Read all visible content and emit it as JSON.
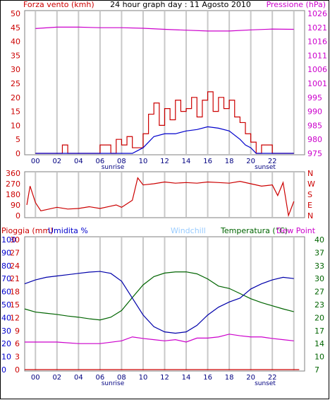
{
  "title": "24 hour graph day : 11 Agosto 2010",
  "colors": {
    "wind": "#cc0000",
    "wind_avg": "#0000cc",
    "pressure": "#cc00cc",
    "direction": "#cc0000",
    "humidity": "#0000aa",
    "temperature": "#006400",
    "dewpoint": "#cc00cc",
    "rain": "#cc0000",
    "windchill": "#99ccff"
  },
  "x_ticks": [
    "00",
    "02",
    "04",
    "06",
    "08",
    "10",
    "12",
    "14",
    "16",
    "18",
    "20",
    "22"
  ],
  "sunrise_label": "sunrise",
  "sunset_label": "sunset",
  "chart_data": [
    {
      "type": "line",
      "name": "wind-pressure",
      "left_label": "Forza vento (kmh)",
      "right_label": "Pressione (hPa)",
      "y_left_ticks": [
        "50",
        "45",
        "40",
        "35",
        "30",
        "25",
        "20",
        "15",
        "10",
        "5",
        "0"
      ],
      "y_left_lim": [
        0,
        50
      ],
      "y_right_ticks": [
        "1026",
        "1021",
        "1016",
        "1011",
        "1006",
        "1001",
        "995",
        "990",
        "985",
        "980",
        "975"
      ],
      "x_range_hours": [
        -1,
        25
      ],
      "gust": {
        "hours": [
          0,
          1,
          2,
          2.5,
          3,
          4,
          5,
          6,
          7,
          7.5,
          8,
          8.5,
          9,
          10,
          10.5,
          11,
          11.5,
          12,
          12.5,
          13,
          13.5,
          14,
          14.5,
          15,
          15.5,
          16,
          16.5,
          17,
          17.5,
          18,
          18.5,
          19,
          19.5,
          20,
          20.5,
          21,
          22,
          23,
          24
        ],
        "values": [
          0,
          0,
          0,
          3,
          0,
          0,
          0,
          3,
          0,
          5,
          3,
          6,
          2,
          7,
          14,
          18,
          10,
          16,
          12,
          19,
          15,
          16,
          20,
          13,
          19,
          22,
          15,
          20,
          16,
          19,
          13,
          11,
          7,
          4,
          0,
          3,
          0,
          0,
          0
        ]
      },
      "average": {
        "hours": [
          0,
          8,
          9,
          9.5,
          10,
          10.5,
          11,
          12,
          13,
          14,
          15,
          16,
          17,
          18,
          19,
          19.5,
          20,
          20.5,
          21,
          24
        ],
        "values": [
          0,
          0,
          0,
          1,
          2,
          4,
          6,
          7,
          7,
          8,
          8.5,
          9.5,
          9,
          8,
          5,
          3,
          2,
          0,
          0,
          0
        ]
      },
      "pressure": {
        "hours": [
          0,
          2,
          4,
          6,
          8,
          10,
          12,
          14,
          16,
          18,
          20,
          22,
          24
        ],
        "values": [
          1020.5,
          1021.0,
          1021.0,
          1020.8,
          1020.8,
          1020.6,
          1020.2,
          1019.9,
          1019.6,
          1019.6,
          1020.0,
          1020.3,
          1020.2
        ]
      }
    },
    {
      "type": "line",
      "name": "wind-direction",
      "y_left_ticks": [
        "360",
        "270",
        "180",
        "90",
        "0"
      ],
      "y_left_lim": [
        0,
        360
      ],
      "y_right_ticks": [
        "N",
        "W",
        "S",
        "E",
        "N"
      ],
      "direction": {
        "hours": [
          -0.8,
          -0.5,
          0,
          0.5,
          1,
          2,
          3,
          4,
          5,
          6,
          7,
          7.5,
          8,
          8.5,
          9,
          9.5,
          10,
          11,
          12,
          13,
          14,
          15,
          16,
          17,
          18,
          19,
          20,
          21,
          22,
          22.5,
          23,
          23.5,
          24
        ],
        "values": [
          90,
          250,
          110,
          40,
          50,
          70,
          55,
          60,
          75,
          60,
          80,
          90,
          70,
          100,
          130,
          320,
          260,
          270,
          285,
          275,
          280,
          275,
          285,
          280,
          275,
          290,
          270,
          250,
          260,
          170,
          280,
          0,
          120
        ]
      }
    },
    {
      "type": "line",
      "name": "rain-humidity-temp",
      "rain_label": "Pioggia (mm)",
      "humidity_label": "Umidita %",
      "windchill_label": "Windchill",
      "temperature_label": "Temperatura (°C)",
      "dewpoint_label": "Dew Point",
      "y_rain_ticks": [
        "30",
        "27",
        "24",
        "21",
        "18",
        "15",
        "12",
        "9",
        "6",
        "3",
        "0"
      ],
      "y_hum_ticks": [
        "100",
        "90",
        "80",
        "70",
        "60",
        "50",
        "40",
        "30",
        "20",
        "10",
        "0"
      ],
      "y_temp_ticks": [
        "40",
        "37",
        "33",
        "30",
        "27",
        "23",
        "20",
        "17",
        "14",
        "10",
        "7"
      ],
      "humidity": {
        "hours": [
          -1,
          0,
          1,
          2,
          3,
          4,
          5,
          6,
          7,
          8,
          9,
          10,
          11,
          12,
          13,
          14,
          15,
          16,
          17,
          18,
          19,
          20,
          21,
          22,
          23,
          24
        ],
        "values": [
          66,
          69,
          71,
          72,
          73,
          74,
          75,
          75.5,
          74,
          68,
          55,
          42,
          33,
          29,
          28,
          29,
          34,
          42,
          48,
          52,
          55,
          62,
          66,
          69,
          71,
          70
        ]
      },
      "temperature": {
        "hours": [
          -1,
          0,
          1,
          2,
          3,
          4,
          5,
          6,
          7,
          8,
          9,
          10,
          11,
          12,
          13,
          14,
          15,
          16,
          17,
          18,
          19,
          20,
          21,
          22,
          23,
          24
        ],
        "values": [
          22.4,
          21.6,
          21.3,
          21.0,
          20.6,
          20.3,
          19.9,
          19.6,
          20.3,
          22.0,
          25.3,
          28.5,
          30.6,
          31.5,
          31.8,
          31.8,
          31.3,
          30.0,
          28.2,
          27.6,
          26.3,
          25.0,
          24.0,
          23.2,
          22.4,
          21.7
        ]
      },
      "dewpoint": {
        "hours": [
          -1,
          0,
          2,
          4,
          6,
          8,
          9,
          10,
          11,
          12,
          13,
          14,
          15,
          16,
          17,
          18,
          19,
          20,
          21,
          22,
          23,
          24
        ],
        "values": [
          14.0,
          14.0,
          14.0,
          13.6,
          13.6,
          14.3,
          15.3,
          14.9,
          14.6,
          14.3,
          14.6,
          14.0,
          15.0,
          15.0,
          15.3,
          16.0,
          15.6,
          15.3,
          15.3,
          14.9,
          14.6,
          14.3
        ]
      },
      "rain": {
        "hours": [
          -1,
          24.5
        ],
        "values": [
          0,
          0
        ]
      }
    }
  ]
}
